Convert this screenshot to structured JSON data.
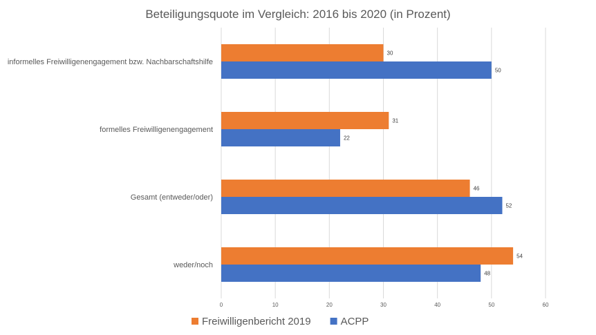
{
  "chart_data": {
    "type": "bar",
    "orientation": "horizontal",
    "title": "Beteiligungsquote im Vergleich: 2016 bis 2020 (in Prozent)",
    "xlabel": "",
    "ylabel": "",
    "categories": [
      "informelles Freiwilligenengagement bzw. Nachbarschaftshilfe",
      "formelles Freiwilligenengagement",
      "Gesamt (entweder/oder)",
      "weder/noch"
    ],
    "series": [
      {
        "name": "Freiwilligenbericht 2019",
        "color": "#ED7D31",
        "values": [
          30,
          31,
          46,
          54
        ]
      },
      {
        "name": "ACPP",
        "color": "#4472C4",
        "values": [
          50,
          22,
          52,
          48
        ]
      }
    ],
    "xlim": [
      0,
      60
    ],
    "xticks": [
      0,
      10,
      20,
      30,
      40,
      50,
      60
    ],
    "grid": true,
    "legend_position": "bottom",
    "data_labels": true
  }
}
